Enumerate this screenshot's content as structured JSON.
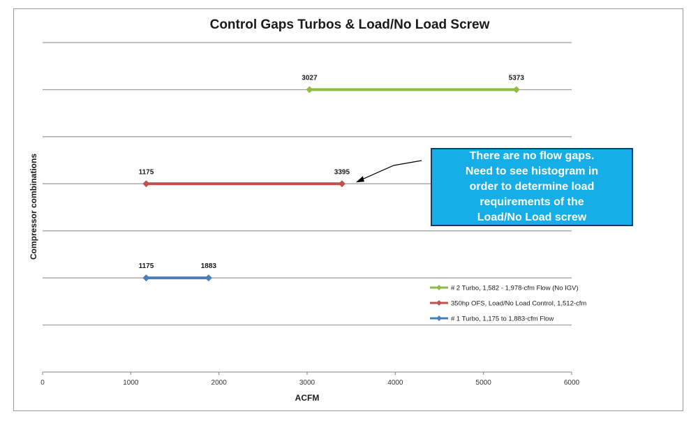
{
  "chart_data": {
    "type": "line",
    "title": "Control Gaps Turbos & Load/No Load Screw",
    "xlabel": "ACFM",
    "ylabel": "Compressor combinations",
    "xlim": [
      0,
      6000
    ],
    "xticks": [
      0,
      1000,
      2000,
      3000,
      4000,
      5000,
      6000
    ],
    "y_levels": 7,
    "grid": "horizontal",
    "legend_position": "right",
    "series": [
      {
        "name": "# 2 Turbo, 1,582 - 1,978-cfm Flow (No IGV)",
        "level": 6,
        "x": [
          3027,
          5373
        ],
        "labels": [
          "3027",
          "5373"
        ],
        "color": "#8fbc45"
      },
      {
        "name": "350hp OFS, Load/No Load Control, 1,512-cfm",
        "level": 4,
        "x": [
          1175,
          3395
        ],
        "labels": [
          "1175",
          "3395"
        ],
        "color": "#c0504d"
      },
      {
        "name": "# 1 Turbo,  1,175 to 1,883-cfm Flow",
        "level": 2,
        "x": [
          1175,
          1883
        ],
        "labels": [
          "1175",
          "1883"
        ],
        "color": "#4a7ebb"
      }
    ],
    "callout": {
      "lines": [
        "There are no flow gaps.",
        "Need to see histogram in",
        "order to determine load",
        "requirements of the",
        "Load/No Load screw"
      ],
      "fill": "#16aee6",
      "border": "#0d3d78",
      "points_to_series": 1,
      "points_to_value": 3395
    }
  }
}
